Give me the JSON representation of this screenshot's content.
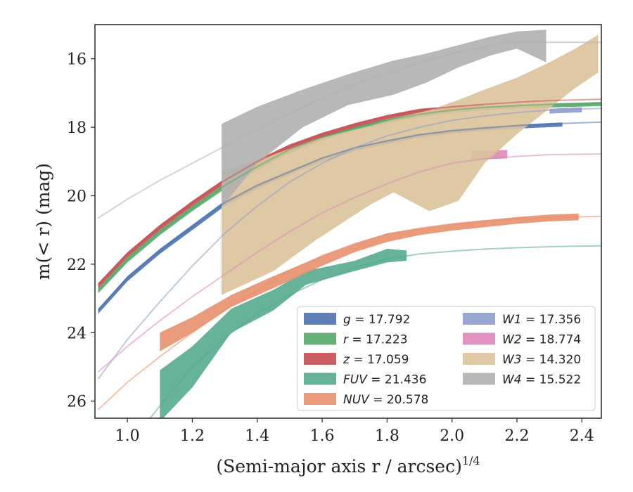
{
  "chart_data": {
    "type": "line",
    "xlabel": "(Semi-major axis r / arcsec)",
    "xlabel_sup": "1/4",
    "ylabel": "m(< r) (mag)",
    "xlim": [
      0.9,
      2.46
    ],
    "ylim": [
      26.5,
      15.0
    ],
    "y_inverted": true,
    "xticks": [
      1.0,
      1.2,
      1.4,
      1.6,
      1.8,
      2.0,
      2.2,
      2.4
    ],
    "xtick_labels": [
      "1.0",
      "1.2",
      "1.4",
      "1.6",
      "1.8",
      "2.0",
      "2.2",
      "2.4"
    ],
    "yticks": [
      16,
      18,
      20,
      22,
      24,
      26
    ],
    "ytick_labels": [
      "16",
      "18",
      "20",
      "22",
      "24",
      "26"
    ],
    "grid": false,
    "legend_position": "lower-right",
    "series": [
      {
        "name": "g = 17.792",
        "color": "#4c72b0",
        "model": [
          [
            0.91,
            23.35
          ],
          [
            1.0,
            22.4
          ],
          [
            1.1,
            21.6
          ],
          [
            1.2,
            20.9
          ],
          [
            1.3,
            20.2
          ],
          [
            1.4,
            19.7
          ],
          [
            1.5,
            19.3
          ],
          [
            1.6,
            18.9
          ],
          [
            1.7,
            18.6
          ],
          [
            1.8,
            18.4
          ],
          [
            1.9,
            18.22
          ],
          [
            2.0,
            18.1
          ],
          [
            2.1,
            18.02
          ],
          [
            2.2,
            17.95
          ],
          [
            2.3,
            17.9
          ],
          [
            2.46,
            17.85
          ]
        ],
        "band": [
          [
            0.91,
            23.3,
            23.45
          ],
          [
            1.0,
            22.35,
            22.5
          ],
          [
            1.1,
            21.55,
            21.7
          ],
          [
            1.2,
            20.85,
            21.0
          ],
          [
            1.3,
            20.15,
            20.3
          ],
          [
            1.4,
            19.65,
            19.8
          ],
          [
            1.5,
            19.25,
            19.38
          ],
          [
            1.6,
            18.88,
            19.0
          ],
          [
            1.7,
            18.58,
            18.7
          ],
          [
            1.8,
            18.35,
            18.48
          ],
          [
            1.9,
            18.18,
            18.3
          ],
          [
            2.0,
            18.06,
            18.18
          ],
          [
            2.1,
            17.98,
            18.1
          ],
          [
            2.2,
            17.92,
            18.04
          ],
          [
            2.34,
            17.86,
            17.98
          ]
        ]
      },
      {
        "name": "r = 17.223",
        "color": "#55a868",
        "model": [
          [
            0.91,
            22.75
          ],
          [
            1.0,
            21.85
          ],
          [
            1.1,
            21.05
          ],
          [
            1.2,
            20.35
          ],
          [
            1.3,
            19.7
          ],
          [
            1.4,
            19.15
          ],
          [
            1.5,
            18.65
          ],
          [
            1.6,
            18.3
          ],
          [
            1.7,
            18.02
          ],
          [
            1.8,
            17.8
          ],
          [
            1.9,
            17.62
          ],
          [
            2.0,
            17.5
          ],
          [
            2.1,
            17.42
          ],
          [
            2.2,
            17.37
          ],
          [
            2.3,
            17.33
          ],
          [
            2.46,
            17.3
          ]
        ],
        "band": [
          [
            0.91,
            22.7,
            22.85
          ],
          [
            1.0,
            21.8,
            21.95
          ],
          [
            1.1,
            21.0,
            21.15
          ],
          [
            1.2,
            20.3,
            20.45
          ],
          [
            1.3,
            19.65,
            19.8
          ],
          [
            1.4,
            19.1,
            19.25
          ],
          [
            1.5,
            18.62,
            18.75
          ],
          [
            1.6,
            18.26,
            18.38
          ],
          [
            1.7,
            17.98,
            18.1
          ],
          [
            1.8,
            17.76,
            17.88
          ],
          [
            1.9,
            17.58,
            17.7
          ],
          [
            2.0,
            17.46,
            17.58
          ],
          [
            2.1,
            17.38,
            17.5
          ],
          [
            2.2,
            17.33,
            17.45
          ],
          [
            2.46,
            17.26,
            17.38
          ]
        ]
      },
      {
        "name": "z = 17.059",
        "color": "#c44e52",
        "model": [
          [
            0.91,
            22.6
          ],
          [
            1.0,
            21.7
          ],
          [
            1.1,
            20.9
          ],
          [
            1.2,
            20.2
          ],
          [
            1.3,
            19.55
          ],
          [
            1.4,
            19.0
          ],
          [
            1.5,
            18.55
          ],
          [
            1.6,
            18.2
          ],
          [
            1.7,
            17.92
          ],
          [
            1.8,
            17.68
          ],
          [
            1.9,
            17.5
          ],
          [
            2.0,
            17.4
          ],
          [
            2.1,
            17.33
          ],
          [
            2.2,
            17.27
          ],
          [
            2.3,
            17.22
          ],
          [
            2.46,
            17.18
          ]
        ],
        "band": [
          [
            0.91,
            22.55,
            22.7
          ],
          [
            1.0,
            21.65,
            21.8
          ],
          [
            1.1,
            20.85,
            21.0
          ],
          [
            1.2,
            20.15,
            20.3
          ],
          [
            1.3,
            19.5,
            19.65
          ],
          [
            1.4,
            18.95,
            19.1
          ],
          [
            1.5,
            18.5,
            18.63
          ],
          [
            1.6,
            18.16,
            18.28
          ],
          [
            1.7,
            17.88,
            18.0
          ],
          [
            1.8,
            17.64,
            17.76
          ],
          [
            1.9,
            17.46,
            17.58
          ],
          [
            2.0,
            17.38,
            17.5
          ],
          [
            2.1,
            17.3,
            17.42
          ]
        ]
      },
      {
        "name": "FUV = 21.436",
        "color": "#55ab8f",
        "model": [
          [
            1.07,
            26.5
          ],
          [
            1.12,
            25.9
          ],
          [
            1.2,
            25.0
          ],
          [
            1.3,
            24.15
          ],
          [
            1.4,
            23.45
          ],
          [
            1.5,
            22.9
          ],
          [
            1.6,
            22.45
          ],
          [
            1.7,
            22.1
          ],
          [
            1.8,
            21.85
          ],
          [
            1.9,
            21.7
          ],
          [
            2.0,
            21.62
          ],
          [
            2.1,
            21.56
          ],
          [
            2.2,
            21.52
          ],
          [
            2.3,
            21.49
          ],
          [
            2.46,
            21.46
          ]
        ],
        "band": [
          [
            1.1,
            25.1,
            26.6
          ],
          [
            1.2,
            24.4,
            25.6
          ],
          [
            1.32,
            23.3,
            24.0
          ],
          [
            1.45,
            22.75,
            23.35
          ],
          [
            1.55,
            22.2,
            22.6
          ],
          [
            1.7,
            21.9,
            22.2
          ],
          [
            1.8,
            21.55,
            21.95
          ],
          [
            1.86,
            21.6,
            21.9
          ]
        ]
      },
      {
        "name": "NUV = 20.578",
        "color": "#e8906d",
        "model": [
          [
            0.91,
            26.25
          ],
          [
            1.0,
            25.45
          ],
          [
            1.1,
            24.7
          ],
          [
            1.2,
            24.0
          ],
          [
            1.3,
            23.35
          ],
          [
            1.4,
            22.75
          ],
          [
            1.5,
            22.2
          ],
          [
            1.6,
            21.75
          ],
          [
            1.7,
            21.4
          ],
          [
            1.8,
            21.12
          ],
          [
            1.9,
            20.95
          ],
          [
            2.0,
            20.82
          ],
          [
            2.1,
            20.73
          ],
          [
            2.2,
            20.68
          ],
          [
            2.3,
            20.64
          ],
          [
            2.46,
            20.6
          ]
        ],
        "band": [
          [
            1.1,
            24.0,
            24.55
          ],
          [
            1.2,
            23.55,
            24.0
          ],
          [
            1.32,
            22.9,
            23.25
          ],
          [
            1.45,
            22.35,
            22.7
          ],
          [
            1.6,
            21.75,
            22.05
          ],
          [
            1.7,
            21.4,
            21.65
          ],
          [
            1.8,
            21.1,
            21.35
          ],
          [
            1.9,
            20.95,
            21.15
          ],
          [
            2.0,
            20.82,
            21.02
          ],
          [
            2.1,
            20.72,
            20.92
          ],
          [
            2.2,
            20.62,
            20.82
          ],
          [
            2.3,
            20.55,
            20.75
          ],
          [
            2.39,
            20.52,
            20.72
          ]
        ]
      },
      {
        "name": "W1 = 17.356",
        "color": "#8d9ccc",
        "model": [
          [
            0.91,
            25.35
          ],
          [
            1.0,
            24.2
          ],
          [
            1.1,
            23.1
          ],
          [
            1.2,
            22.05
          ],
          [
            1.3,
            21.1
          ],
          [
            1.4,
            20.3
          ],
          [
            1.5,
            19.6
          ],
          [
            1.6,
            19.05
          ],
          [
            1.7,
            18.6
          ],
          [
            1.8,
            18.25
          ],
          [
            1.9,
            18.0
          ],
          [
            2.0,
            17.8
          ],
          [
            2.1,
            17.67
          ],
          [
            2.2,
            17.57
          ],
          [
            2.3,
            17.5
          ],
          [
            2.46,
            17.45
          ]
        ],
        "band": [
          [
            2.3,
            17.46,
            17.6
          ],
          [
            2.4,
            17.42,
            17.56
          ]
        ]
      },
      {
        "name": "W2 = 18.774",
        "color": "#dd88b8",
        "model": [
          [
            0.91,
            25.15
          ],
          [
            1.0,
            24.4
          ],
          [
            1.1,
            23.65
          ],
          [
            1.2,
            22.95
          ],
          [
            1.3,
            22.3
          ],
          [
            1.4,
            21.65
          ],
          [
            1.5,
            21.05
          ],
          [
            1.6,
            20.5
          ],
          [
            1.7,
            20.05
          ],
          [
            1.8,
            19.65
          ],
          [
            1.9,
            19.3
          ],
          [
            2.0,
            19.05
          ],
          [
            2.1,
            18.92
          ],
          [
            2.2,
            18.85
          ],
          [
            2.3,
            18.8
          ],
          [
            2.46,
            18.78
          ]
        ],
        "band": [
          [
            2.06,
            18.7,
            18.95
          ],
          [
            2.12,
            18.68,
            18.93
          ],
          [
            2.17,
            18.66,
            18.91
          ]
        ]
      },
      {
        "name": "W3 = 14.320",
        "color": "#dcc39b",
        "model": [],
        "band": [
          [
            1.29,
            19.3,
            22.9
          ],
          [
            1.45,
            18.8,
            22.2
          ],
          [
            1.58,
            18.35,
            21.3
          ],
          [
            1.75,
            17.95,
            20.25
          ],
          [
            1.82,
            17.75,
            19.9
          ],
          [
            1.93,
            17.5,
            20.45
          ],
          [
            2.02,
            17.2,
            20.15
          ],
          [
            2.1,
            16.9,
            19.05
          ],
          [
            2.2,
            16.55,
            18.2
          ],
          [
            2.3,
            16.1,
            17.45
          ],
          [
            2.38,
            15.7,
            16.85
          ],
          [
            2.45,
            15.3,
            16.4
          ]
        ]
      },
      {
        "name": "W4 = 15.522",
        "color": "#b0b0b0",
        "model": [
          [
            0.91,
            20.65
          ],
          [
            1.0,
            20.1
          ],
          [
            1.1,
            19.55
          ],
          [
            1.2,
            19.05
          ],
          [
            1.3,
            18.55
          ],
          [
            1.4,
            18.05
          ],
          [
            1.5,
            17.6
          ],
          [
            1.6,
            17.15
          ],
          [
            1.7,
            16.75
          ],
          [
            1.8,
            16.4
          ],
          [
            1.9,
            16.1
          ],
          [
            2.0,
            15.85
          ],
          [
            2.1,
            15.65
          ],
          [
            2.17,
            15.52
          ],
          [
            2.46,
            15.52
          ]
        ],
        "band": [
          [
            1.29,
            17.9,
            20.35
          ],
          [
            1.4,
            17.4,
            19.05
          ],
          [
            1.54,
            16.9,
            18.0
          ],
          [
            1.68,
            16.45,
            17.35
          ],
          [
            1.82,
            16.05,
            17.05
          ],
          [
            1.92,
            15.85,
            16.7
          ],
          [
            2.02,
            15.6,
            16.25
          ],
          [
            2.12,
            15.35,
            15.9
          ],
          [
            2.2,
            15.2,
            15.7
          ],
          [
            2.29,
            15.15,
            16.1
          ]
        ]
      }
    ]
  }
}
